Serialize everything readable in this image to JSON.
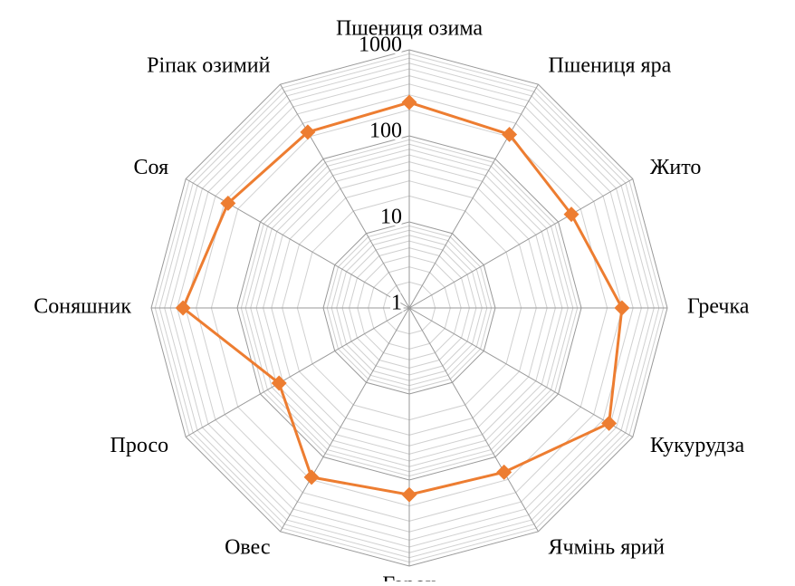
{
  "chart_data": {
    "type": "radar",
    "categories": [
      "Пшениця озима",
      "Пшениця яра",
      "Жито",
      "Гречка",
      "Кукурудза",
      "Ячмінь ярий",
      "Горох",
      "Овес",
      "Просо",
      "Соняшник",
      "Соя",
      "Ріпак озимий"
    ],
    "series": [
      {
        "name": null,
        "color": "#ed7d31",
        "values": [
          245,
          213,
          150,
          297,
          480,
          160,
          148,
          187,
          56,
          427,
          271,
          229
        ]
      }
    ],
    "rlim": [
      1,
      1000
    ],
    "rticks": [
      1,
      10,
      100,
      1000
    ],
    "log_scale": true,
    "grid": true
  }
}
